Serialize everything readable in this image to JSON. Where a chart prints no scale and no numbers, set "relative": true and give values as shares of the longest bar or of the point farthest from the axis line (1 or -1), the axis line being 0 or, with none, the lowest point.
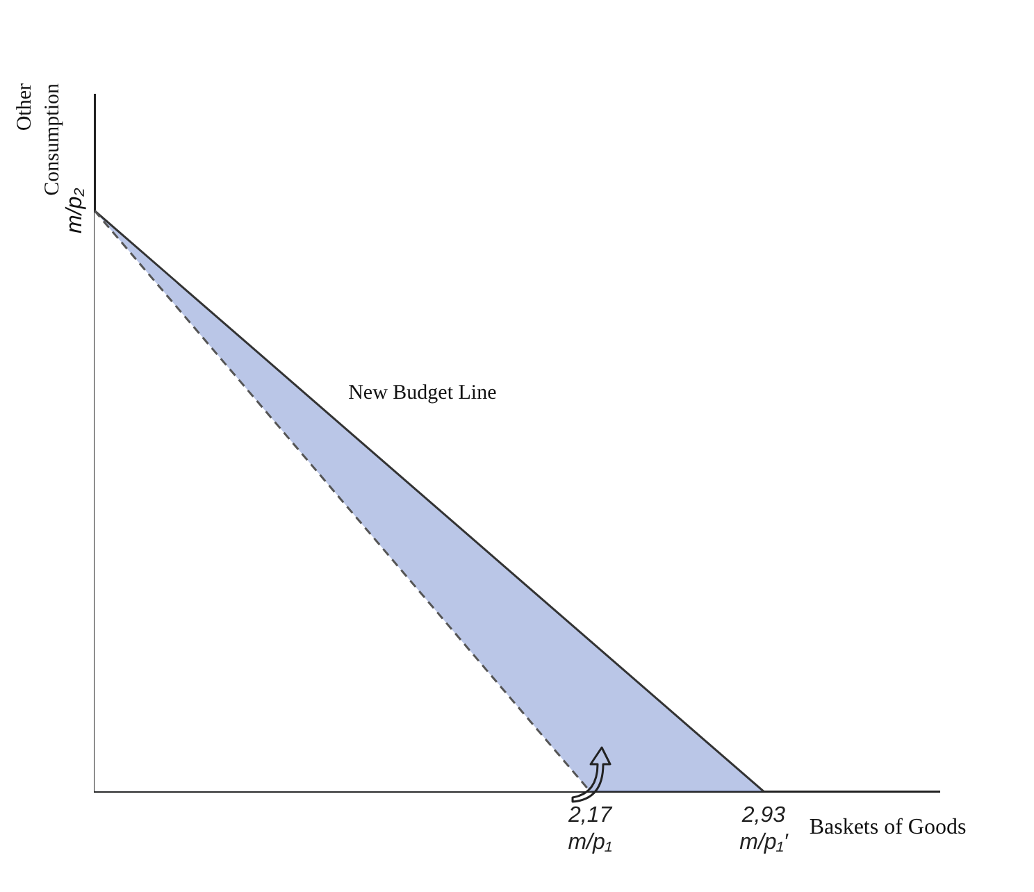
{
  "chart_data": {
    "type": "line",
    "relative": true,
    "xlabel": "Baskets of Goods",
    "ylabel": "Other Consumption",
    "xlim": [
      0,
      3.7
    ],
    "xticks": [
      {
        "value": 2.17,
        "label": "2,17\nm/p₁"
      },
      {
        "value": 2.93,
        "label": "2,93\nm/p₁′"
      }
    ],
    "annotations": [
      {
        "text": "m/p₂",
        "x": 0,
        "y": 1
      }
    ],
    "grid": false,
    "legend": false,
    "series": [
      {
        "color": "#555555",
        "x": [
          0,
          2.17
        ],
        "values": [
          1,
          0
        ],
        "line_style": "dashed"
      },
      {
        "name": "New Budget Line",
        "color": "#333333",
        "x": [
          0,
          2.93
        ],
        "values": [
          1,
          0
        ],
        "line_style": "solid"
      }
    ]
  }
}
